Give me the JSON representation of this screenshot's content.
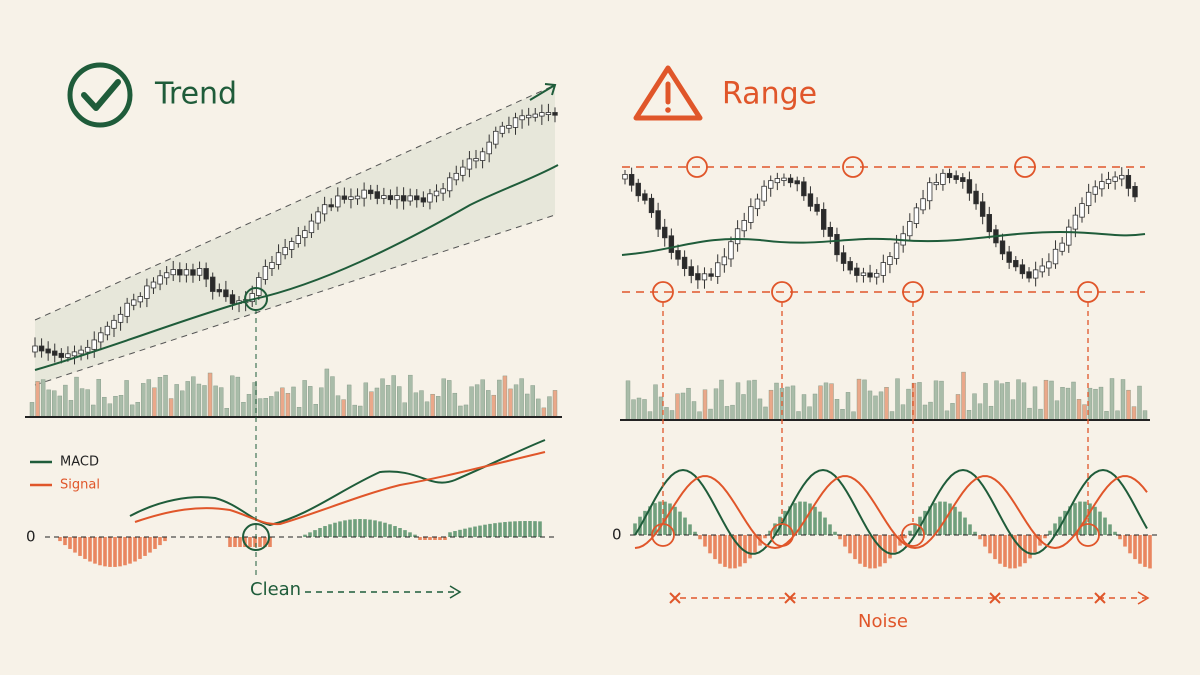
{
  "left": {
    "title": "Trend",
    "legend": [
      "MACD",
      "Signal"
    ],
    "zero_label": "0",
    "caption": "Clean"
  },
  "right": {
    "title": "Range",
    "zero_label": "0",
    "caption": "Noise"
  }
}
